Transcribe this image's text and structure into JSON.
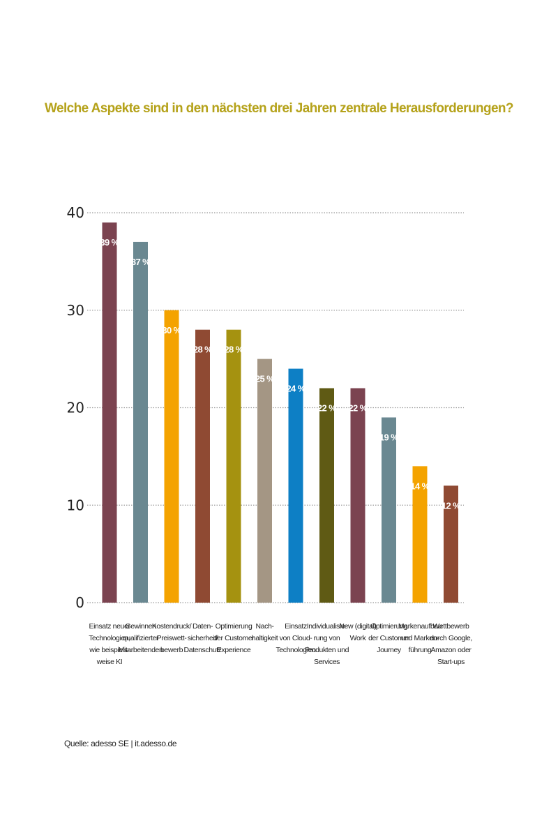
{
  "chart_data": {
    "type": "bar",
    "title": "Welche Aspekte sind in den nächsten drei Jahren zentrale Herausforderungen?",
    "xlabel": "",
    "ylabel": "",
    "ylim": [
      0,
      40
    ],
    "yticks": [
      0,
      10,
      20,
      30,
      40
    ],
    "grid": true,
    "categories": [
      [
        "Einsatz neuer",
        "Technologien,",
        "wie beispiels-",
        "weise KI"
      ],
      [
        "Gewinnen",
        "qualifizierter",
        "Mitarbeitenden"
      ],
      [
        "Kostendruck/",
        "Preiswett-",
        "bewerb"
      ],
      [
        "Daten-",
        "sicherheit/",
        "Datenschutz"
      ],
      [
        "Optimierung",
        "der Customer",
        "Experience"
      ],
      [
        "Nach-",
        "haltigkeit"
      ],
      [
        "Einsatz",
        "von Cloud-",
        "Technologien"
      ],
      [
        "Individualisie-",
        "rung von",
        "Produkten und",
        "Services"
      ],
      [
        "New (digital)",
        "Work"
      ],
      [
        "Optimierung",
        "der Customer",
        "Journey"
      ],
      [
        "Markenaufbau",
        "und Marken-",
        "führung"
      ],
      [
        "Wettbewerb",
        "durch Google,",
        "Amazon oder",
        "Start-ups"
      ]
    ],
    "values": [
      39,
      37,
      30,
      28,
      28,
      25,
      24,
      22,
      22,
      19,
      14,
      12
    ],
    "value_labels": [
      "39 %",
      "37 %",
      "30 %",
      "28 %",
      "28 %",
      "25 %",
      "24 %",
      "22 %",
      "22 %",
      "19 %",
      "14 %",
      "12 %"
    ],
    "colors": [
      "#7b4350",
      "#6a8891",
      "#f4a300",
      "#8f4a33",
      "#a59210",
      "#a49684",
      "#0d7fc5",
      "#5f5a14",
      "#7b4350",
      "#6a8891",
      "#f4a300",
      "#8f4a33"
    ]
  },
  "source": "Quelle: adesso SE | it.adesso.de"
}
